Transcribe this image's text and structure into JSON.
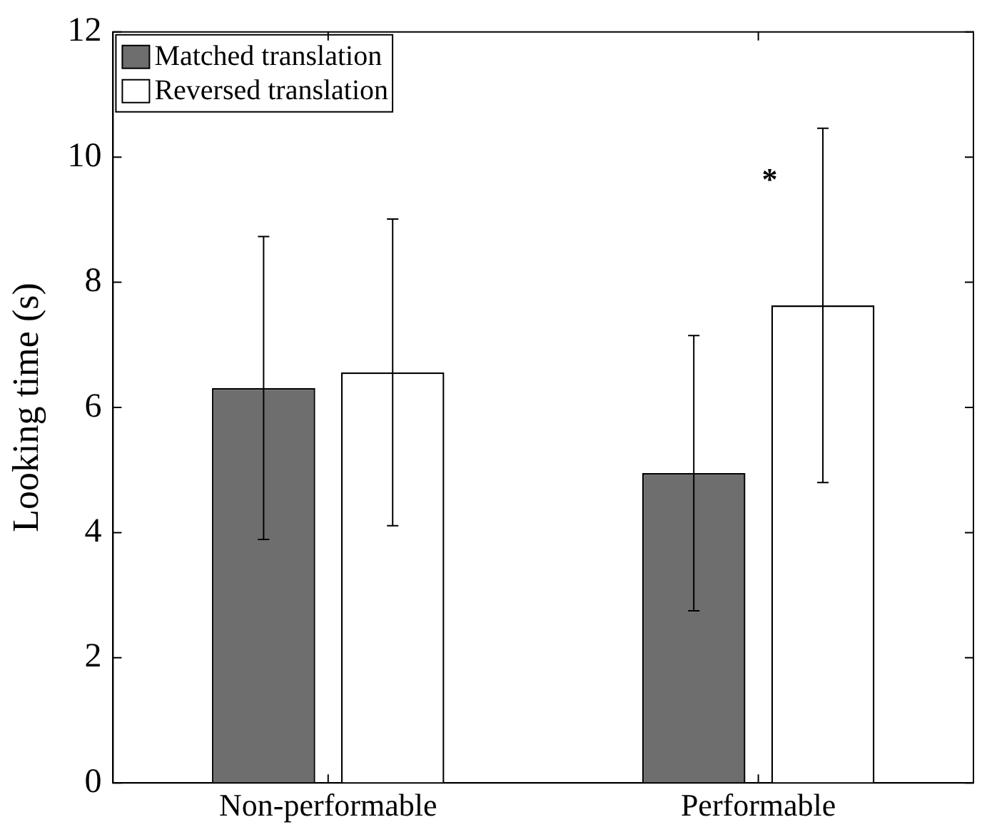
{
  "chart_data": {
    "type": "bar",
    "ylabel": "Looking time (s)",
    "categories": [
      "Non-performable",
      "Performable"
    ],
    "series": [
      {
        "name": "Matched translation",
        "color": "#6e6e6e",
        "values": [
          6.31,
          4.95
        ],
        "errors": [
          2.42,
          2.2
        ]
      },
      {
        "name": "Reversed translation",
        "color": "#ffffff",
        "values": [
          6.56,
          7.63
        ],
        "errors": [
          2.45,
          2.83
        ]
      }
    ],
    "ylim": [
      0,
      12
    ],
    "yticks": [
      0,
      2,
      4,
      6,
      8,
      10,
      12
    ],
    "grid": false,
    "legend": "top left",
    "annotations": [
      "*"
    ]
  }
}
